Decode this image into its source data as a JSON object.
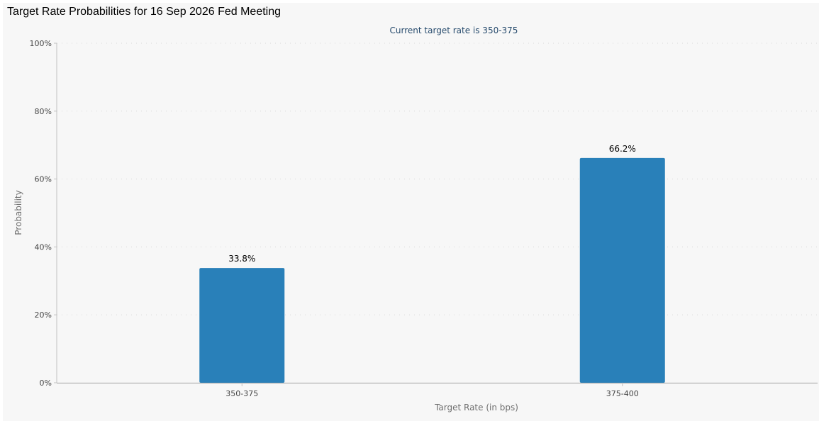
{
  "chart_data": {
    "type": "bar",
    "title": "Target Rate Probabilities for 16 Sep 2026 Fed Meeting",
    "subtitle": "Current target rate is 350-375",
    "xlabel": "Target Rate (in bps)",
    "ylabel": "Probability",
    "categories": [
      "350-375",
      "375-400"
    ],
    "values": [
      33.8,
      66.2
    ],
    "data_labels": [
      "33.8%",
      "66.2%"
    ],
    "ylim": [
      0,
      100
    ],
    "yticks": [
      0,
      20,
      40,
      60,
      80,
      100
    ],
    "ytick_labels": [
      "0%",
      "20%",
      "40%",
      "60%",
      "80%",
      "100%"
    ],
    "grid": true,
    "legend": "none",
    "bar_color": "#2980b9",
    "gridline_color": "#d8d8d8"
  }
}
